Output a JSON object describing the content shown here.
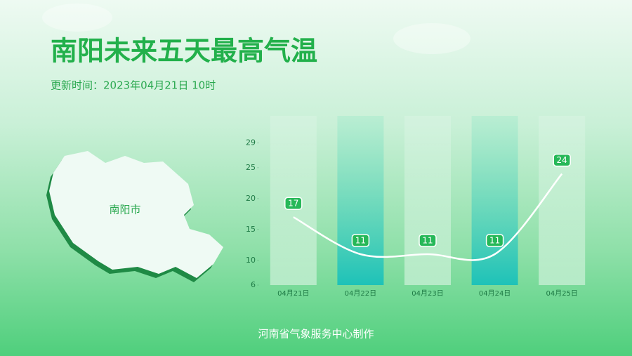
{
  "header": {
    "title": "南阳未来五天最高气温",
    "subtitle": "更新时间：2023年04月21日 10时"
  },
  "map": {
    "label": "南阳市"
  },
  "footer": "河南省气象服务中心制作",
  "chart_data": {
    "type": "line",
    "categories": [
      "04月21日",
      "04月22日",
      "04月23日",
      "04月24日",
      "04月25日"
    ],
    "values": [
      17,
      11,
      11,
      11,
      24
    ],
    "color": "#ffffff",
    "ylim": [
      6,
      29
    ],
    "yticks": [
      6,
      10,
      15,
      20,
      25,
      29
    ]
  }
}
